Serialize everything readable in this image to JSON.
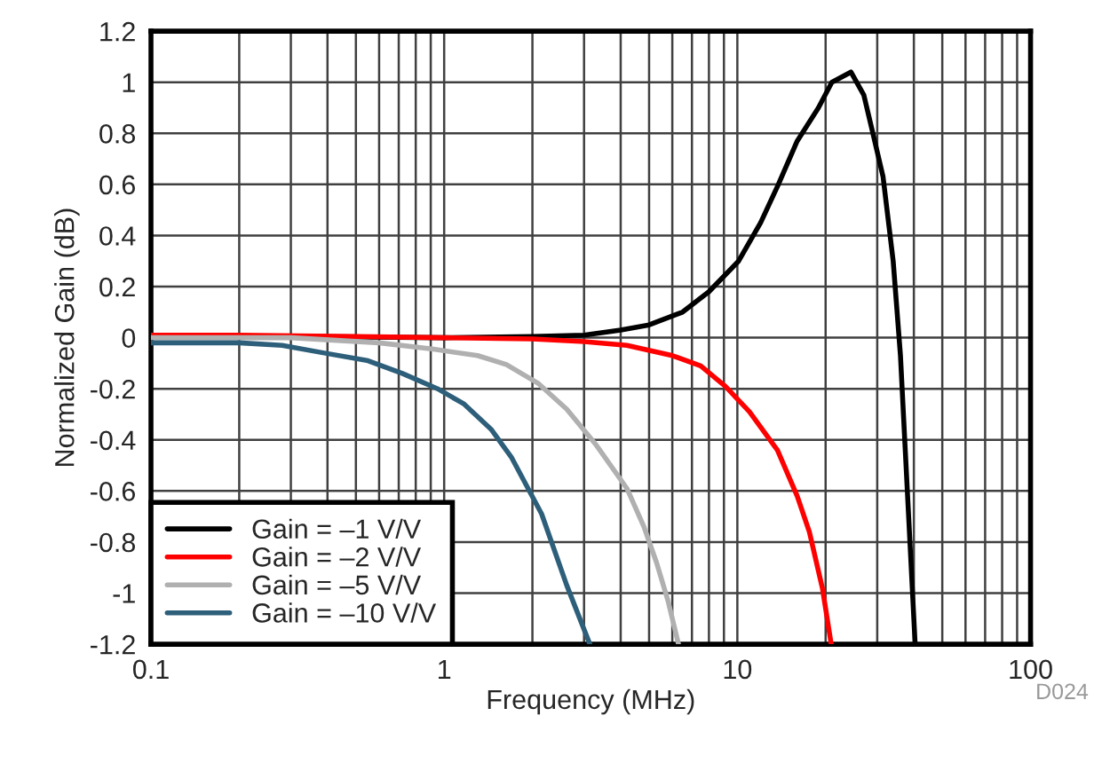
{
  "chart_data": {
    "type": "line",
    "xlabel": "Frequency (MHz)",
    "ylabel": "Normalized Gain (dB)",
    "log": "x",
    "xlim": [
      0.1,
      100
    ],
    "xticks": [
      0.1,
      1,
      10,
      100
    ],
    "ylim": [
      -1.2,
      1.2
    ],
    "yticks": [
      -1.2,
      -1,
      -0.8,
      -0.6,
      -0.4,
      -0.2,
      0,
      0.2,
      0.4,
      0.6,
      0.8,
      1,
      1.2
    ],
    "grid": true,
    "legend": "bottom left",
    "line_style": "solid",
    "marker": "none",
    "annotations": [
      "D024"
    ],
    "series": [
      {
        "name": "Gain = –1 V/V",
        "color": "#000000",
        "x": [
          0.1,
          1,
          2,
          3,
          4,
          5,
          6.5,
          8,
          10.1,
          12,
          13.8,
          16,
          18.9,
          21,
          24.4,
          27,
          29,
          31.4,
          34,
          36,
          38,
          40.4
        ],
        "values": [
          0.01,
          0.0,
          0.005,
          0.01,
          0.03,
          0.05,
          0.1,
          0.18,
          0.3,
          0.45,
          0.6,
          0.77,
          0.9,
          1.0,
          1.04,
          0.95,
          0.8,
          0.63,
          0.3,
          -0.07,
          -0.6,
          -1.2
        ]
      },
      {
        "name": "Gain = –2 V/V",
        "color": "#ff0000",
        "x": [
          0.1,
          0.2,
          0.5,
          1,
          2,
          3,
          4.2,
          6,
          7.5,
          9.1,
          11,
          13.7,
          16,
          17.6,
          19.5,
          20.9
        ],
        "values": [
          0.01,
          0.01,
          0.005,
          0.0,
          -0.005,
          -0.015,
          -0.03,
          -0.07,
          -0.11,
          -0.19,
          -0.29,
          -0.44,
          -0.62,
          -0.76,
          -0.98,
          -1.2
        ]
      },
      {
        "name": "Gain = –5 V/V",
        "color": "#b0b0b0",
        "x": [
          0.1,
          0.3,
          0.6,
          0.92,
          1.3,
          1.63,
          2.1,
          2.62,
          3.3,
          4.2,
          4.8,
          5.3,
          5.8,
          6.3
        ],
        "values": [
          0.0,
          0.0,
          -0.02,
          -0.045,
          -0.07,
          -0.105,
          -0.18,
          -0.28,
          -0.42,
          -0.59,
          -0.74,
          -0.88,
          -1.03,
          -1.2
        ]
      },
      {
        "name": "Gain = –10 V/V",
        "color": "#2e5f7a",
        "x": [
          0.1,
          0.2,
          0.28,
          0.39,
          0.55,
          0.72,
          0.95,
          1.17,
          1.45,
          1.7,
          2.15,
          2.62,
          3.14
        ],
        "values": [
          -0.02,
          -0.02,
          -0.03,
          -0.06,
          -0.09,
          -0.14,
          -0.2,
          -0.26,
          -0.36,
          -0.47,
          -0.69,
          -0.97,
          -1.2
        ]
      }
    ]
  }
}
